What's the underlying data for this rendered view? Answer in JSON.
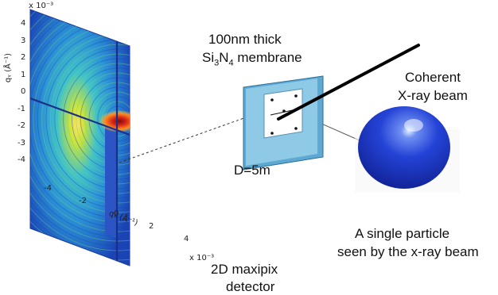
{
  "labels": {
    "membrane_line1": "100nm thick",
    "membrane_line2_pre": "Si",
    "membrane_sub3": "3",
    "membrane_mid": "N",
    "membrane_sub4": "4",
    "membrane_post": " membrane",
    "beam_line1": "Coherent",
    "beam_line2": "X-ray beam",
    "distance": "D=5m",
    "particle_line1": "A single particle",
    "particle_line2": "seen by the x-ray beam",
    "detector_line1": "2D maxipix",
    "detector_line2": "detector"
  },
  "detector_plot": {
    "y_axis_label": "qᵧ (Å⁻¹)",
    "x_axis_label": "qₓ (Å⁻¹)",
    "y_scale": "x 10⁻³",
    "x_scale": "x 10⁻³",
    "y_ticks": [
      "4",
      "3",
      "2",
      "1",
      "0",
      "-1",
      "-2",
      "-3",
      "-4"
    ],
    "x_ticks": [
      "-4",
      "-2",
      "0",
      "2",
      "4"
    ]
  },
  "colors": {
    "detector_background": "#1e4fbf",
    "speckle_mid": "#2bb5d9",
    "speckle_bright": "#c7e23a",
    "beamstop": "#2b55c4",
    "center_hot": "#d32a1a",
    "membrane_frame": "#8ec9e6",
    "particle": "#1f3fd0",
    "beam_line": "#000000"
  },
  "icons": [
    "detector-image",
    "membrane-frame",
    "xray-beam-line",
    "particle-sphere"
  ]
}
